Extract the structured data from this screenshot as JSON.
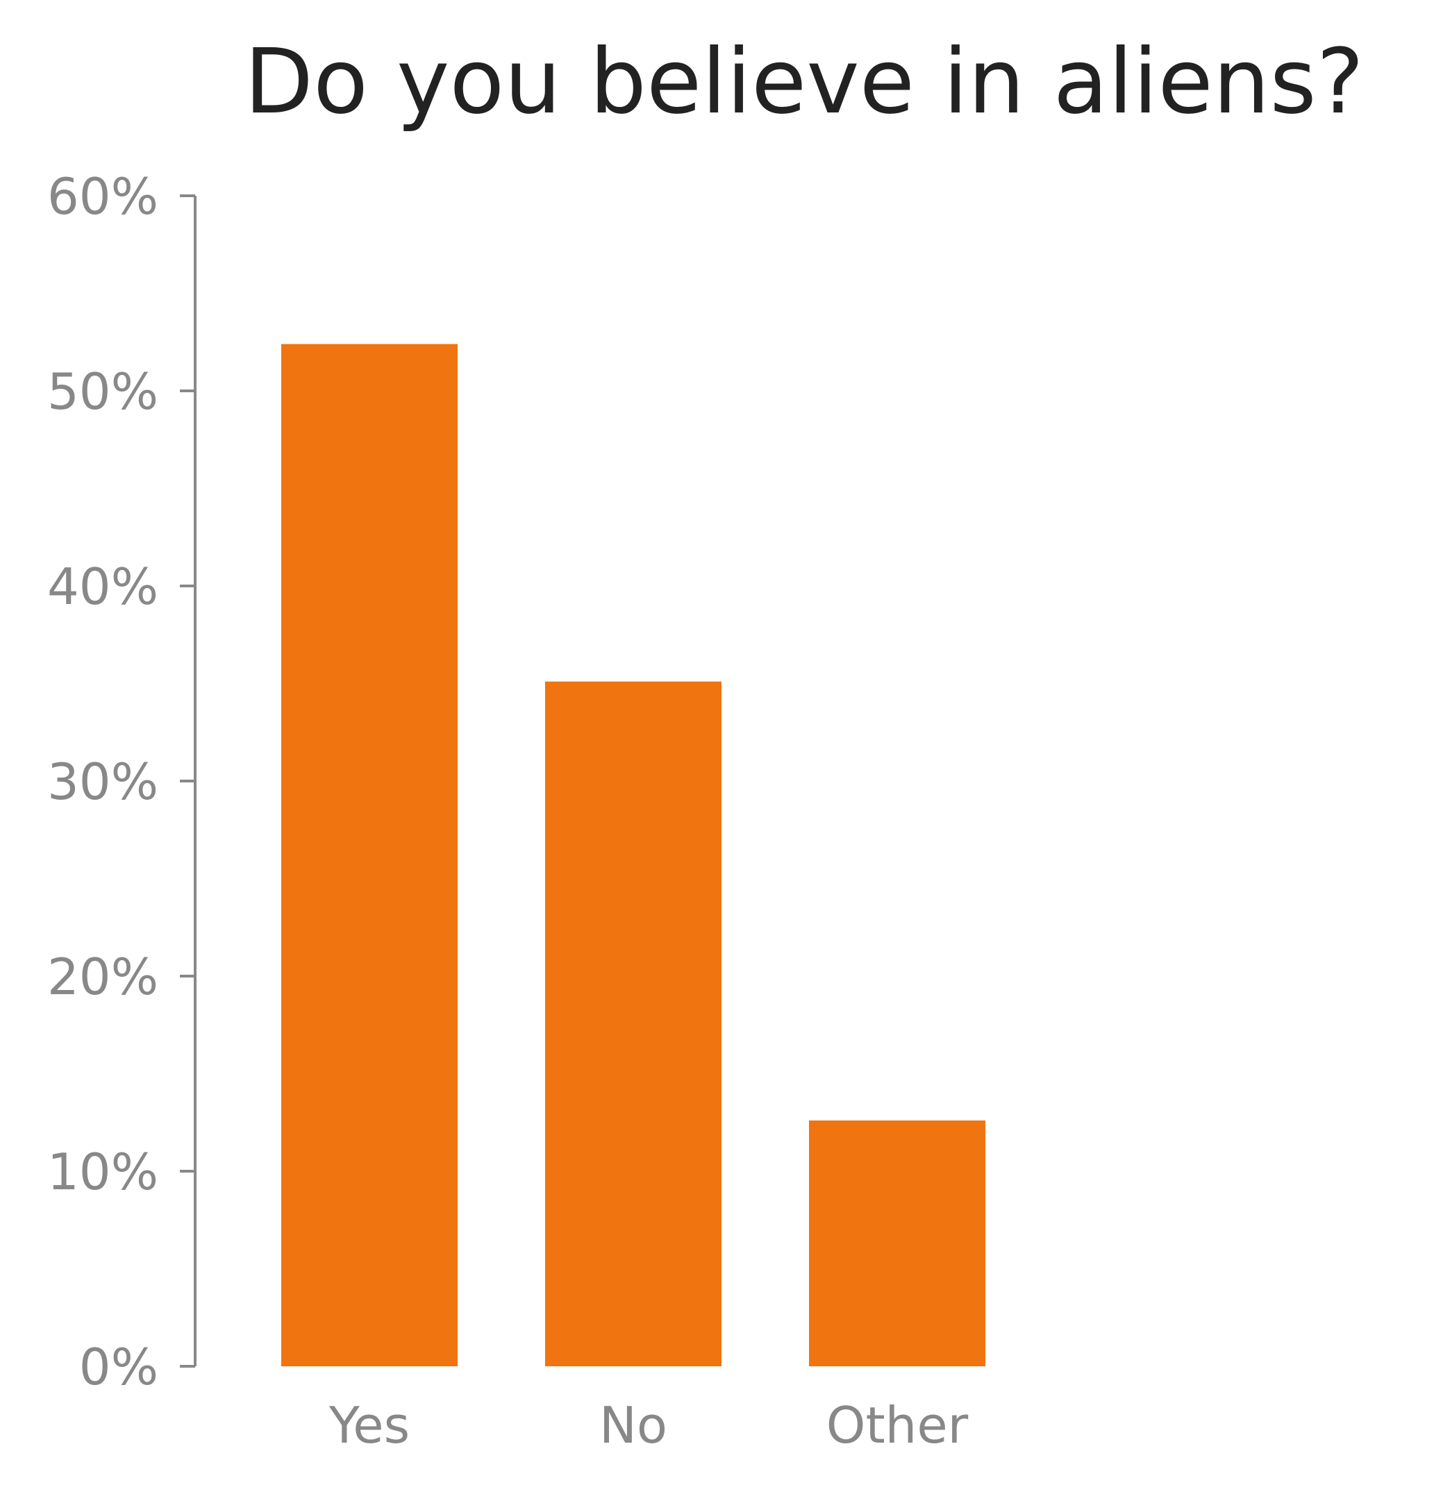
{
  "chart_data": {
    "type": "bar",
    "title": "Do you believe in aliens?",
    "xlabel": "",
    "ylabel": "",
    "categories": [
      "Yes",
      "No",
      "Other"
    ],
    "values": [
      52.4,
      35.1,
      12.6
    ],
    "value_format": "percent",
    "ylim": [
      0,
      60
    ],
    "yticks": [
      0,
      10,
      20,
      30,
      40,
      50,
      60
    ],
    "ytick_labels": [
      "0%",
      "10%",
      "20%",
      "30%",
      "40%",
      "50%",
      "60%"
    ],
    "grid": false,
    "legend": "none",
    "colors": {
      "bar": "#f07410",
      "axis": "#888888",
      "tick_text": "#888888",
      "title_text": "#222222",
      "background": "#ffffff"
    }
  }
}
